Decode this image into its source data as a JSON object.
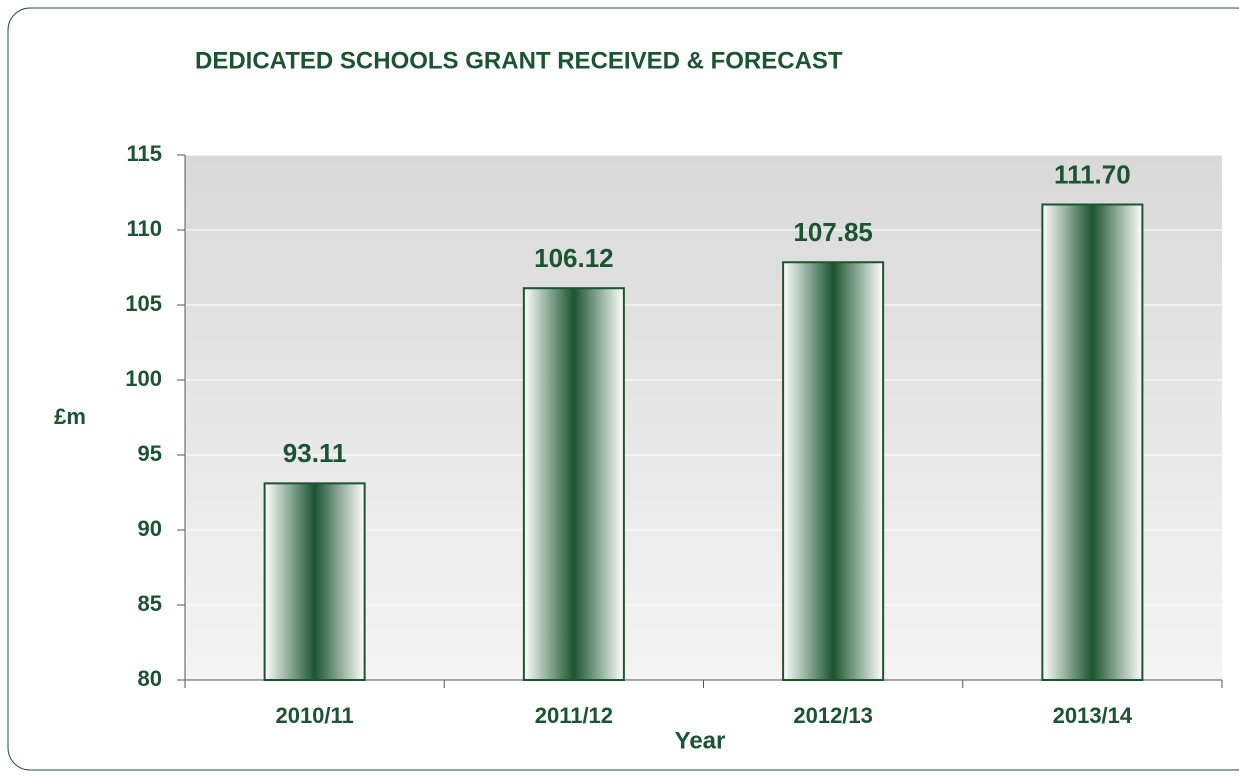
{
  "chart_data": {
    "type": "bar",
    "title": "DEDICATED SCHOOLS GRANT RECEIVED & FORECAST",
    "x_label": "Year",
    "y_label": "£m",
    "categories": [
      "2010/11",
      "2011/12",
      "2012/13",
      "2013/14"
    ],
    "values": [
      93.11,
      106.12,
      107.85,
      111.7
    ],
    "value_labels": [
      "93.11",
      "106.12",
      "107.85",
      "111.70"
    ],
    "color": "#1b5430",
    "ylim": [
      80,
      115
    ],
    "yticks": [
      80,
      85,
      90,
      95,
      100,
      105,
      110,
      115
    ],
    "grid": true
  }
}
